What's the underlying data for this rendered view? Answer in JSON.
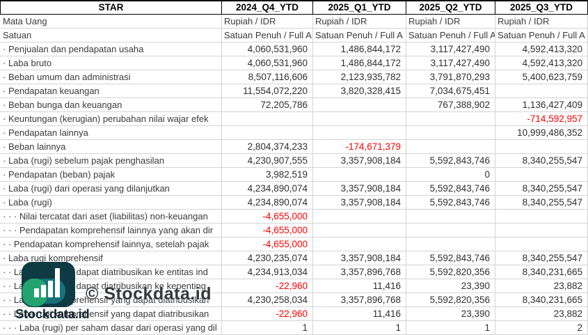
{
  "table": {
    "ticker": "STAR",
    "period_columns": [
      "2024_Q4_YTD",
      "2025_Q1_YTD",
      "2025_Q2_YTD",
      "2025_Q3_YTD"
    ],
    "meta_rows": [
      {
        "label": "Mata Uang",
        "values": [
          "Rupiah / IDR",
          "Rupiah / IDR",
          "Rupiah / IDR",
          "Rupiah / IDR"
        ]
      },
      {
        "label": "Satuan",
        "values": [
          "Satuan Penuh / Full A",
          "Satuan Penuh / Full A",
          "Satuan Penuh / Full A",
          "Satuan Penuh / Full A"
        ]
      }
    ],
    "rows": [
      {
        "label": "· Penjualan dan pendapatan usaha",
        "values": [
          "4,060,531,960",
          "1,486,844,172",
          "3,117,427,490",
          "4,592,413,320"
        ]
      },
      {
        "label": "· Laba bruto",
        "values": [
          "4,060,531,960",
          "1,486,844,172",
          "3,117,427,490",
          "4,592,413,320"
        ]
      },
      {
        "label": "· Beban umum dan administrasi",
        "values": [
          "8,507,116,606",
          "2,123,935,782",
          "3,791,870,293",
          "5,400,623,759"
        ]
      },
      {
        "label": "· Pendapatan keuangan",
        "values": [
          "11,554,072,220",
          "3,820,328,415",
          "7,034,675,451",
          ""
        ]
      },
      {
        "label": "· Beban bunga dan keuangan",
        "values": [
          "72,205,786",
          "",
          "767,388,902",
          "1,136,427,409"
        ]
      },
      {
        "label": "· Keuntungan (kerugian) perubahan nilai wajar efek",
        "values": [
          "",
          "",
          "",
          "-714,592,957"
        ]
      },
      {
        "label": "· Pendapatan lainnya",
        "values": [
          "",
          "",
          "",
          "10,999,486,352"
        ]
      },
      {
        "label": "· Beban lainnya",
        "values": [
          "2,804,374,233",
          "-174,671,379",
          "",
          ""
        ]
      },
      {
        "label": "· Laba (rugi) sebelum pajak penghasilan",
        "values": [
          "4,230,907,555",
          "3,357,908,184",
          "5,592,843,746",
          "8,340,255,547"
        ]
      },
      {
        "label": "· Pendapatan (beban) pajak",
        "values": [
          "3,982,519",
          "",
          "0",
          ""
        ]
      },
      {
        "label": "· Laba (rugi) dari operasi yang dilanjutkan",
        "values": [
          "4,234,890,074",
          "3,357,908,184",
          "5,592,843,746",
          "8,340,255,547"
        ]
      },
      {
        "label": "· Laba (rugi)",
        "values": [
          "4,234,890,074",
          "3,357,908,184",
          "5,592,843,746",
          "8,340,255,547"
        ]
      },
      {
        "label": "· · · Nilai tercatat dari aset (liabilitas) non-keuangan",
        "values": [
          "-4,655,000",
          "",
          "",
          ""
        ]
      },
      {
        "label": "· · · Pendapatan komprehensif lainnya yang akan dir",
        "values": [
          "-4,655,000",
          "",
          "",
          ""
        ]
      },
      {
        "label": "· · Pendapatan komprehensif lainnya, setelah pajak",
        "values": [
          "-4,655,000",
          "",
          "",
          ""
        ]
      },
      {
        "label": "· Laba rugi komprehensif",
        "values": [
          "4,230,235,074",
          "3,357,908,184",
          "5,592,843,746",
          "8,340,255,547"
        ]
      },
      {
        "label": "· · Laba rugi yang dapat diatribusikan ke entitas ind",
        "values": [
          "4,234,913,034",
          "3,357,896,768",
          "5,592,820,356",
          "8,340,231,665"
        ]
      },
      {
        "label": "· · Laba rugi yang dapat diatribusikan ke kepenting",
        "values": [
          "-22,960",
          "11,416",
          "23,390",
          "23,882"
        ]
      },
      {
        "label": "· · Laba rugi komprehensif yang dapat diatribusikan",
        "values": [
          "4,230,258,034",
          "3,357,896,768",
          "5,592,820,356",
          "8,340,231,665"
        ]
      },
      {
        "label": "· · Laba rugi komprehensif yang dapat diatribusikan",
        "values": [
          "-22,960",
          "11,416",
          "23,390",
          "23,882"
        ]
      },
      {
        "label": "· · · Laba (rugi) per saham dasar dari operasi yang dil",
        "values": [
          "1",
          "1",
          "1",
          "2"
        ]
      }
    ]
  },
  "watermark": {
    "text": "© Stockdata.id"
  },
  "logo": {
    "text": "Stockdata.id",
    "icon": "bar-chart-icon"
  },
  "colors": {
    "negative": "#ff0000",
    "gridline": "#d4d4d4",
    "header_border": "#000000",
    "logo_dark": "#0e3b43",
    "logo_teal": "#17717a",
    "logo_green": "#23a36f"
  }
}
